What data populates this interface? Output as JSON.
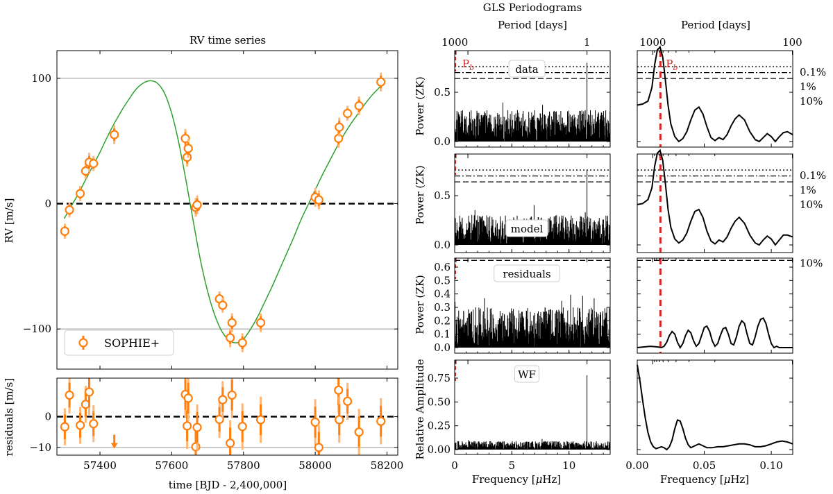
{
  "colors": {
    "rv_points": "#ff7f0e",
    "rv_errorbars": "#ffb574",
    "keplerian_model": "#2ca02c",
    "period_marker": "#d62728",
    "periodogram": "#000000"
  },
  "titles": {
    "rv": "RV time series",
    "gls": "GLS Periodograms"
  },
  "labels": {
    "rv_y": "RV [m/s]",
    "res_y": "residuals [m/s]",
    "time_x": "time [BJD - 2,400,000]",
    "period_top": "Period [days]",
    "freq_x": "Frequency [",
    "freq_mu": "μ",
    "freq_unit": "Hz]",
    "power_zk": "Power (ZK)",
    "rel_amp": "Relative Amplitude",
    "pb": "P",
    "pb_sub": "b"
  },
  "legend": {
    "label": "SOPHIE+"
  },
  "panel_names": [
    "data",
    "model",
    "residuals",
    "WF"
  ],
  "fap_labels": [
    "0.1%",
    "1%",
    "10%"
  ],
  "chart_data": [
    {
      "type": "scatter",
      "name": "rv_time_series",
      "title": "RV time series",
      "xlabel": "time [BJD - 2,400,000]",
      "ylabel": "RV [m/s]",
      "xlim": [
        57280,
        58230
      ],
      "ylim": [
        -132,
        122
      ],
      "xticks": [
        57400,
        57600,
        57800,
        58000,
        58200
      ],
      "yticks": [
        -100,
        0,
        100
      ],
      "legend": {
        "label": "SOPHIE+",
        "position": "lower left"
      },
      "points": [
        {
          "x": 57302,
          "y": -22,
          "err": 4
        },
        {
          "x": 57315,
          "y": -5,
          "err": 4
        },
        {
          "x": 57345,
          "y": 8,
          "err": 4
        },
        {
          "x": 57360,
          "y": 26,
          "err": 4
        },
        {
          "x": 57370,
          "y": 33,
          "err": 5
        },
        {
          "x": 57382,
          "y": 32,
          "err": 4
        },
        {
          "x": 57440,
          "y": 55,
          "err": 5
        },
        {
          "x": 57638,
          "y": 52,
          "err": 5
        },
        {
          "x": 57643,
          "y": 37,
          "err": 5
        },
        {
          "x": 57646,
          "y": 44,
          "err": 5
        },
        {
          "x": 57667,
          "y": -3,
          "err": 5
        },
        {
          "x": 57671,
          "y": -1,
          "err": 5
        },
        {
          "x": 57733,
          "y": -76,
          "err": 4
        },
        {
          "x": 57742,
          "y": -81,
          "err": 4
        },
        {
          "x": 57763,
          "y": -107,
          "err": 5
        },
        {
          "x": 57768,
          "y": -95,
          "err": 5
        },
        {
          "x": 57797,
          "y": -111,
          "err": 5
        },
        {
          "x": 57848,
          "y": -95,
          "err": 5
        },
        {
          "x": 58000,
          "y": 5,
          "err": 5
        },
        {
          "x": 58010,
          "y": 3,
          "err": 5
        },
        {
          "x": 58065,
          "y": 52,
          "err": 5
        },
        {
          "x": 58067,
          "y": 61,
          "err": 5
        },
        {
          "x": 58090,
          "y": 72,
          "err": 4
        },
        {
          "x": 58122,
          "y": 78,
          "err": 5
        },
        {
          "x": 58183,
          "y": 97,
          "err": 5
        }
      ],
      "model": {
        "description_type": "keplerian",
        "x": [
          57300,
          57320,
          57340,
          57360,
          57380,
          57400,
          57420,
          57440,
          57460,
          57480,
          57500,
          57520,
          57540,
          57560,
          57580,
          57600,
          57620,
          57640,
          57660,
          57680,
          57700,
          57720,
          57740,
          57760,
          57780,
          57800,
          57820,
          57840,
          57860,
          57880,
          57900,
          57920,
          57940,
          57960,
          57980,
          58000,
          58020,
          58040,
          58060,
          58080,
          58100,
          58120,
          58140,
          58160,
          58180,
          58190
        ],
        "y": [
          -12,
          -2,
          8,
          19,
          30,
          41,
          53,
          64,
          74,
          83,
          91,
          96,
          98,
          96,
          88,
          72,
          48,
          18,
          -14,
          -45,
          -70,
          -89,
          -102,
          -109,
          -111,
          -108,
          -100,
          -90,
          -78,
          -66,
          -53,
          -40,
          -27,
          -13,
          -1,
          11,
          23,
          34,
          45,
          55,
          64,
          72,
          80,
          87,
          93,
          96
        ]
      }
    },
    {
      "type": "scatter",
      "name": "residuals",
      "xlabel": "time [BJD - 2,400,000]",
      "ylabel": "residuals [m/s]",
      "xlim": [
        57280,
        58230
      ],
      "ylim": [
        -12.5,
        12.5
      ],
      "yticks": [
        -10,
        0
      ],
      "points": [
        {
          "x": 57302,
          "y": -3.3,
          "err": 4
        },
        {
          "x": 57315,
          "y": 7,
          "err": 4
        },
        {
          "x": 57345,
          "y": -2.8,
          "err": 4
        },
        {
          "x": 57360,
          "y": 4,
          "err": 4
        },
        {
          "x": 57370,
          "y": 8,
          "err": 5
        },
        {
          "x": 57382,
          "y": -2.3,
          "err": 4
        },
        {
          "x": 57440,
          "y": -12,
          "err": 5,
          "offscale": true
        },
        {
          "x": 57638,
          "y": 7.2,
          "err": 5
        },
        {
          "x": 57643,
          "y": -3,
          "err": 5
        },
        {
          "x": 57646,
          "y": 6,
          "err": 5
        },
        {
          "x": 57667,
          "y": -9.8,
          "err": 5
        },
        {
          "x": 57671,
          "y": -3.5,
          "err": 5
        },
        {
          "x": 57733,
          "y": -0.9,
          "err": 4
        },
        {
          "x": 57742,
          "y": 5.5,
          "err": 4
        },
        {
          "x": 57763,
          "y": -8.6,
          "err": 5
        },
        {
          "x": 57768,
          "y": 7,
          "err": 5
        },
        {
          "x": 57797,
          "y": -3.2,
          "err": 5
        },
        {
          "x": 57848,
          "y": -1,
          "err": 5
        },
        {
          "x": 58000,
          "y": -1.8,
          "err": 5
        },
        {
          "x": 58010,
          "y": -10,
          "err": 5
        },
        {
          "x": 58065,
          "y": 8.6,
          "err": 5
        },
        {
          "x": 58067,
          "y": -1,
          "err": 5
        },
        {
          "x": 58090,
          "y": 5,
          "err": 4
        },
        {
          "x": 58122,
          "y": -5,
          "err": 5
        },
        {
          "x": 58183,
          "y": -1.5,
          "err": 5
        }
      ]
    },
    {
      "type": "line",
      "name": "gls_periodograms_wide",
      "title": "GLS Periodograms",
      "xlabel": "Frequency [μHz]",
      "top_xlabel": "Period [days]",
      "xlim": [
        0,
        13.6
      ],
      "xticks": [
        0,
        5,
        10
      ],
      "top_ticks": [
        {
          "period": 1000,
          "freq": 0.01157
        },
        {
          "period": 1,
          "freq": 11.574
        }
      ],
      "panels": [
        {
          "label": "data",
          "ylabel": "Power (ZK)",
          "ylim": [
            -0.05,
            1.0
          ],
          "yticks": [
            0.0,
            0.5
          ],
          "faps": [
            0.76,
            0.7,
            0.64
          ],
          "peak": {
            "x": 11.57,
            "y": 0.8
          },
          "noise_level": 0.32
        },
        {
          "label": "model",
          "ylabel": "Power (ZK)",
          "ylim": [
            -0.05,
            1.0
          ],
          "yticks": [
            0.0,
            0.5
          ],
          "faps": [
            0.76,
            0.7,
            0.64
          ],
          "peak": {
            "x": 11.57,
            "y": 0.76
          },
          "noise_level": 0.3
        },
        {
          "label": "residuals",
          "ylabel": "Power (ZK)",
          "ylim": [
            -0.03,
            0.67
          ],
          "yticks": [
            0.0,
            0.1,
            0.2,
            0.3,
            0.4,
            0.5,
            0.6
          ],
          "faps": [
            0.65
          ],
          "noise_level": 0.3
        },
        {
          "label": "WF",
          "ylabel": "Relative Amplitude",
          "ylim": [
            -0.03,
            0.9
          ],
          "yticks": [
            0.0,
            0.25,
            0.5,
            0.75
          ],
          "faps": [],
          "peak": {
            "x": 11.57,
            "y": 0.78
          },
          "noise_level": 0.09
        }
      ]
    },
    {
      "type": "line",
      "name": "gls_periodograms_zoom",
      "xlabel": "Frequency [μHz]",
      "top_xlabel": "Period [days]",
      "xlim": [
        0,
        0.116
      ],
      "xticks": [
        0.0,
        0.05,
        0.1
      ],
      "top_ticks": [
        {
          "period": 1000,
          "freq": 0.01157
        },
        {
          "period": 100,
          "freq": 0.1157
        }
      ],
      "period_marker": {
        "label": "P_b",
        "freq": 0.0173
      },
      "panels": [
        {
          "label": "data",
          "ylim": [
            -0.05,
            1.0
          ],
          "faps": [
            0.76,
            0.7,
            0.64
          ],
          "fap_labels": [
            "0.1%",
            "1%",
            "10%"
          ],
          "x": [
            0,
            0.004,
            0.008,
            0.011,
            0.013,
            0.015,
            0.017,
            0.019,
            0.021,
            0.023,
            0.025,
            0.028,
            0.031,
            0.034,
            0.037,
            0.04,
            0.043,
            0.046,
            0.049,
            0.052,
            0.055,
            0.058,
            0.061,
            0.064,
            0.067,
            0.07,
            0.073,
            0.076,
            0.08,
            0.084,
            0.088,
            0.091,
            0.094,
            0.097,
            0.1,
            0.103,
            0.106,
            0.109,
            0.112,
            0.116
          ],
          "y": [
            0.37,
            0.38,
            0.41,
            0.55,
            0.78,
            0.93,
            0.96,
            0.86,
            0.62,
            0.37,
            0.18,
            0.05,
            0.0,
            0.03,
            0.1,
            0.22,
            0.32,
            0.35,
            0.28,
            0.15,
            0.04,
            0.01,
            0.04,
            0.02,
            0.07,
            0.16,
            0.23,
            0.27,
            0.22,
            0.1,
            0.02,
            0.0,
            0.04,
            0.08,
            0.05,
            0.0,
            0.05,
            0.09,
            0.1,
            0.07
          ]
        },
        {
          "label": "model",
          "ylim": [
            -0.05,
            1.0
          ],
          "faps": [
            0.76,
            0.7,
            0.64
          ],
          "fap_labels": [
            "0.1%",
            "1%",
            "10%"
          ],
          "x": [
            0,
            0.004,
            0.008,
            0.011,
            0.013,
            0.015,
            0.017,
            0.019,
            0.021,
            0.023,
            0.025,
            0.028,
            0.031,
            0.034,
            0.037,
            0.04,
            0.043,
            0.046,
            0.049,
            0.052,
            0.055,
            0.058,
            0.061,
            0.064,
            0.067,
            0.07,
            0.073,
            0.076,
            0.08,
            0.084,
            0.088,
            0.091,
            0.094,
            0.097,
            0.1,
            0.103,
            0.106,
            0.109,
            0.112,
            0.116
          ],
          "y": [
            0.41,
            0.42,
            0.46,
            0.58,
            0.8,
            0.93,
            0.96,
            0.86,
            0.62,
            0.36,
            0.18,
            0.06,
            0.02,
            0.05,
            0.12,
            0.24,
            0.34,
            0.36,
            0.28,
            0.14,
            0.04,
            0.01,
            0.05,
            0.03,
            0.08,
            0.17,
            0.24,
            0.28,
            0.22,
            0.1,
            0.02,
            0.0,
            0.05,
            0.09,
            0.06,
            0.0,
            0.05,
            0.1,
            0.1,
            0.08
          ]
        },
        {
          "label": "residuals",
          "ylim": [
            -0.03,
            0.67
          ],
          "faps": [
            0.65
          ],
          "fap_labels": [
            "10%"
          ],
          "x": [
            0,
            0.005,
            0.01,
            0.015,
            0.018,
            0.02,
            0.022,
            0.024,
            0.026,
            0.028,
            0.03,
            0.032,
            0.034,
            0.036,
            0.038,
            0.04,
            0.042,
            0.044,
            0.046,
            0.048,
            0.05,
            0.052,
            0.054,
            0.056,
            0.058,
            0.06,
            0.062,
            0.064,
            0.066,
            0.068,
            0.07,
            0.072,
            0.074,
            0.076,
            0.078,
            0.08,
            0.082,
            0.084,
            0.086,
            0.088,
            0.09,
            0.092,
            0.094,
            0.096,
            0.098,
            0.1,
            0.102,
            0.104,
            0.106,
            0.108,
            0.11,
            0.112,
            0.116
          ],
          "y": [
            0.0,
            0.005,
            0.01,
            0.005,
            0.0,
            0.01,
            0.04,
            0.09,
            0.12,
            0.1,
            0.04,
            0.0,
            0.03,
            0.09,
            0.13,
            0.11,
            0.05,
            0.01,
            0.03,
            0.09,
            0.15,
            0.16,
            0.12,
            0.05,
            0.01,
            0.03,
            0.09,
            0.14,
            0.15,
            0.1,
            0.03,
            0.02,
            0.08,
            0.16,
            0.2,
            0.18,
            0.1,
            0.03,
            0.02,
            0.08,
            0.16,
            0.21,
            0.22,
            0.18,
            0.1,
            0.03,
            0.0,
            0.01,
            0.0,
            0.0,
            0.0,
            0.0,
            0.0
          ]
        },
        {
          "label": "WF",
          "ylim": [
            -0.03,
            0.9
          ],
          "faps": [],
          "x": [
            0,
            0.002,
            0.004,
            0.006,
            0.008,
            0.01,
            0.012,
            0.014,
            0.016,
            0.018,
            0.02,
            0.022,
            0.024,
            0.026,
            0.028,
            0.03,
            0.032,
            0.034,
            0.036,
            0.038,
            0.04,
            0.043,
            0.046,
            0.049,
            0.052,
            0.056,
            0.06,
            0.064,
            0.068,
            0.072,
            0.076,
            0.08,
            0.084,
            0.088,
            0.092,
            0.096,
            0.1,
            0.104,
            0.108,
            0.112,
            0.116
          ],
          "y": [
            0.89,
            0.72,
            0.52,
            0.33,
            0.18,
            0.08,
            0.03,
            0.01,
            0.02,
            0.03,
            0.02,
            0.0,
            0.03,
            0.1,
            0.22,
            0.31,
            0.3,
            0.22,
            0.12,
            0.05,
            0.02,
            0.04,
            0.06,
            0.04,
            0.02,
            0.02,
            0.03,
            0.03,
            0.04,
            0.05,
            0.06,
            0.06,
            0.05,
            0.03,
            0.03,
            0.04,
            0.06,
            0.08,
            0.09,
            0.08,
            0.06
          ]
        }
      ]
    }
  ]
}
